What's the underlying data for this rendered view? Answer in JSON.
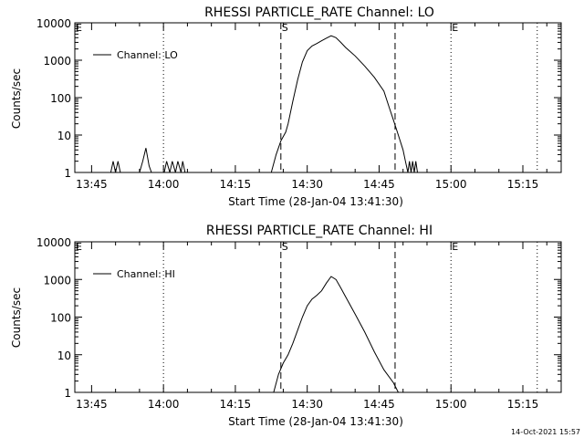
{
  "footer_timestamp": "14-Oct-2021 15:57",
  "colors": {
    "line": "#000000",
    "background": "#ffffff"
  },
  "chart_data": [
    {
      "type": "line",
      "title": "RHESSI PARTICLE_RATE Channel: LO",
      "xlabel": "Start Time (28-Jan-04 13:41:30)",
      "ylabel": "Counts/sec",
      "y_scale": "log",
      "ylim": [
        1,
        10000
      ],
      "y_ticks": [
        "1",
        "10",
        "100",
        "1000",
        "10000"
      ],
      "xlim": [
        "13:41:30",
        "15:23:00"
      ],
      "x_ticks": [
        "13:45",
        "14:00",
        "14:15",
        "14:30",
        "14:45",
        "15:00",
        "15:15"
      ],
      "legend": {
        "label": "Channel: LO",
        "position": "top-left"
      },
      "markers": {
        "dashed": [
          {
            "time": "14:24:30",
            "label": "S"
          },
          {
            "time": "14:48:20",
            "label": ""
          }
        ],
        "dotted": [
          {
            "time": "13:41:30",
            "label": "E"
          },
          {
            "time": "14:00:00",
            "label": ""
          },
          {
            "time": "15:00:00",
            "label": "E"
          },
          {
            "time": "15:18:00",
            "label": ""
          }
        ]
      },
      "series": [
        {
          "values": [
            [
              "13:49:00",
              1
            ],
            [
              "13:49:30",
              2
            ],
            [
              "13:50:00",
              1
            ],
            [
              "13:50:30",
              2
            ],
            [
              "13:51:00",
              1
            ],
            [
              "13:55:00",
              1
            ],
            [
              "13:55:40",
              2
            ],
            [
              "13:56:20",
              4.5
            ],
            [
              "13:57:00",
              1.5
            ],
            [
              "13:57:30",
              1
            ],
            [
              "14:00:10",
              1
            ],
            [
              "14:00:40",
              2
            ],
            [
              "14:01:20",
              1
            ],
            [
              "14:01:50",
              2
            ],
            [
              "14:02:30",
              1
            ],
            [
              "14:03:00",
              2
            ],
            [
              "14:03:40",
              1
            ],
            [
              "14:04:00",
              2
            ],
            [
              "14:04:30",
              1
            ],
            [
              "14:22:30",
              1
            ],
            [
              "14:23:30",
              3
            ],
            [
              "14:24:30",
              7
            ],
            [
              "14:25:30",
              12
            ],
            [
              "14:26:00",
              20
            ],
            [
              "14:27:00",
              80
            ],
            [
              "14:28:00",
              300
            ],
            [
              "14:29:00",
              900
            ],
            [
              "14:30:00",
              1800
            ],
            [
              "14:31:00",
              2400
            ],
            [
              "14:32:00",
              2800
            ],
            [
              "14:33:00",
              3300
            ],
            [
              "14:34:00",
              3900
            ],
            [
              "14:35:00",
              4500
            ],
            [
              "14:36:00",
              4000
            ],
            [
              "14:37:00",
              3000
            ],
            [
              "14:38:00",
              2200
            ],
            [
              "14:40:00",
              1300
            ],
            [
              "14:42:00",
              700
            ],
            [
              "14:44:00",
              350
            ],
            [
              "14:46:00",
              150
            ],
            [
              "14:47:00",
              60
            ],
            [
              "14:48:00",
              25
            ],
            [
              "14:49:00",
              10
            ],
            [
              "14:50:00",
              4
            ],
            [
              "14:50:30",
              2
            ],
            [
              "14:51:00",
              1
            ],
            [
              "14:51:20",
              2
            ],
            [
              "14:51:40",
              1
            ],
            [
              "14:52:00",
              2
            ],
            [
              "14:52:20",
              1
            ],
            [
              "14:52:40",
              2
            ],
            [
              "14:53:00",
              1
            ]
          ]
        }
      ]
    },
    {
      "type": "line",
      "title": "RHESSI PARTICLE_RATE Channel: HI",
      "xlabel": "Start Time (28-Jan-04 13:41:30)",
      "ylabel": "Counts/sec",
      "y_scale": "log",
      "ylim": [
        1,
        10000
      ],
      "y_ticks": [
        "1",
        "10",
        "100",
        "1000",
        "10000"
      ],
      "xlim": [
        "13:41:30",
        "15:23:00"
      ],
      "x_ticks": [
        "13:45",
        "14:00",
        "14:15",
        "14:30",
        "14:45",
        "15:00",
        "15:15"
      ],
      "legend": {
        "label": "Channel: HI",
        "position": "top-left"
      },
      "markers": {
        "dashed": [
          {
            "time": "14:24:30",
            "label": "S"
          },
          {
            "time": "14:48:20",
            "label": ""
          }
        ],
        "dotted": [
          {
            "time": "13:41:30",
            "label": "E"
          },
          {
            "time": "14:00:00",
            "label": ""
          },
          {
            "time": "15:00:00",
            "label": "E"
          },
          {
            "time": "15:18:00",
            "label": ""
          }
        ]
      },
      "series": [
        {
          "values": [
            [
              "14:23:00",
              1
            ],
            [
              "14:24:00",
              3
            ],
            [
              "14:25:00",
              6
            ],
            [
              "14:26:00",
              10
            ],
            [
              "14:27:00",
              20
            ],
            [
              "14:28:00",
              45
            ],
            [
              "14:29:00",
              100
            ],
            [
              "14:30:00",
              200
            ],
            [
              "14:31:00",
              300
            ],
            [
              "14:32:00",
              380
            ],
            [
              "14:33:00",
              500
            ],
            [
              "14:34:00",
              800
            ],
            [
              "14:35:00",
              1200
            ],
            [
              "14:36:00",
              1000
            ],
            [
              "14:37:00",
              600
            ],
            [
              "14:38:00",
              350
            ],
            [
              "14:40:00",
              120
            ],
            [
              "14:42:00",
              40
            ],
            [
              "14:44:00",
              12
            ],
            [
              "14:46:00",
              4
            ],
            [
              "14:48:00",
              1.8
            ],
            [
              "14:49:00",
              1
            ]
          ]
        }
      ]
    }
  ]
}
